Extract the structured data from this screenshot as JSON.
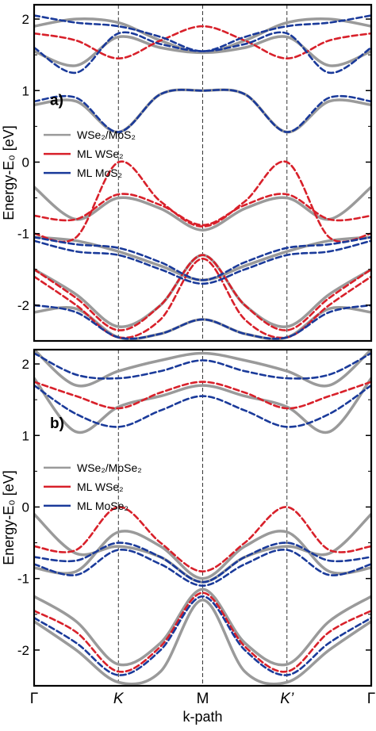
{
  "chart_data": [
    {
      "type": "line",
      "panel_label": "a)",
      "ylabel": "Energy-E₀ [eV]",
      "ylim": [
        -2.5,
        2.2
      ],
      "yticks": [
        -2,
        -1,
        0,
        1,
        2
      ],
      "ytick_labels": [
        "-2",
        "-1",
        "0",
        "1",
        "2"
      ],
      "xticks": [
        0,
        1,
        2,
        3,
        4
      ],
      "xtick_labels": [
        "Γ",
        "K",
        "M",
        "K’",
        "Γ"
      ],
      "vlines": [
        1,
        2,
        3
      ],
      "legend": {
        "position": "left",
        "entries": [
          {
            "name": "WSe₂/MoS₂",
            "color": "#9a9a9a",
            "style": "solid"
          },
          {
            "name": "ML WSe₂",
            "color": "#d8202a",
            "style": "solid"
          },
          {
            "name": "ML MoS₂",
            "color": "#1a3a9a",
            "style": "solid"
          }
        ]
      },
      "series": [
        {
          "name": "WSe₂/MoS₂",
          "color": "#9a9a9a",
          "dash": false,
          "width": 3.5,
          "bands": [
            {
              "x": [
                0,
                0.5,
                1,
                1.5,
                2,
                2.5,
                3,
                3.5,
                4
              ],
              "y": [
                0.8,
                0.85,
                0.42,
                0.95,
                1.0,
                0.95,
                0.42,
                0.85,
                0.8
              ]
            },
            {
              "x": [
                0,
                0.5,
                1,
                1.5,
                2,
                2.5,
                3,
                3.5,
                4
              ],
              "y": [
                1.55,
                1.35,
                1.75,
                1.6,
                1.53,
                1.6,
                1.75,
                1.35,
                1.55
              ]
            },
            {
              "x": [
                0,
                0.5,
                1,
                1.5,
                2,
                2.5,
                3,
                3.5,
                4
              ],
              "y": [
                1.9,
                2.0,
                1.95,
                1.7,
                1.53,
                1.7,
                1.95,
                2.0,
                1.9
              ]
            },
            {
              "x": [
                0,
                0.5,
                1,
                1.5,
                2,
                2.5,
                3,
                3.5,
                4
              ],
              "y": [
                -0.35,
                -0.8,
                -0.5,
                -0.65,
                -0.95,
                -0.65,
                -0.5,
                -0.8,
                -0.35
              ]
            },
            {
              "x": [
                0,
                0.5,
                1,
                1.5,
                2,
                2.5,
                3,
                3.5,
                4
              ],
              "y": [
                -1.05,
                -1.1,
                -1.25,
                -1.45,
                -1.65,
                -1.45,
                -1.25,
                -1.1,
                -1.05
              ]
            },
            {
              "x": [
                0,
                0.5,
                1,
                1.5,
                2,
                2.5,
                3,
                3.5,
                4
              ],
              "y": [
                -1.5,
                -1.85,
                -2.3,
                -2.0,
                -1.3,
                -2.0,
                -2.3,
                -1.85,
                -1.5
              ]
            },
            {
              "x": [
                0,
                0.5,
                1,
                1.5,
                2,
                2.5,
                3,
                3.5,
                4
              ],
              "y": [
                -2.1,
                -2.05,
                -2.45,
                -2.4,
                -2.2,
                -2.4,
                -2.45,
                -2.05,
                -2.1
              ]
            }
          ]
        },
        {
          "name": "ML WSe₂",
          "color": "#d8202a",
          "dash": true,
          "width": 2.6,
          "bands": [
            {
              "x": [
                0,
                0.5,
                1,
                1.5,
                2,
                2.5,
                3,
                3.5,
                4
              ],
              "y": [
                1.8,
                1.7,
                1.45,
                1.7,
                1.9,
                1.7,
                1.45,
                1.7,
                1.8
              ]
            },
            {
              "x": [
                0,
                0.5,
                1,
                1.5,
                2,
                2.5,
                3,
                3.5,
                4
              ],
              "y": [
                -0.75,
                -0.8,
                -0.45,
                -0.6,
                -0.88,
                -0.6,
                -0.45,
                -0.8,
                -0.75
              ]
            },
            {
              "x": [
                0,
                0.5,
                1,
                1.5,
                2,
                2.5,
                3,
                3.5,
                4
              ],
              "y": [
                -1.0,
                -1.05,
                0.0,
                -0.55,
                -0.9,
                -0.55,
                0.0,
                -1.05,
                -1.0
              ]
            },
            {
              "x": [
                0,
                0.5,
                1,
                1.5,
                2,
                2.5,
                3,
                3.5,
                4
              ],
              "y": [
                -1.5,
                -1.9,
                -2.35,
                -2.0,
                -1.3,
                -2.0,
                -2.35,
                -1.9,
                -1.5
              ]
            },
            {
              "x": [
                0,
                0.5,
                1,
                1.5,
                2,
                2.5,
                3,
                3.5,
                4
              ],
              "y": [
                -1.6,
                -2.0,
                -2.45,
                -2.2,
                -1.35,
                -2.2,
                -2.45,
                -2.0,
                -1.6
              ]
            }
          ]
        },
        {
          "name": "ML MoS₂",
          "color": "#1a3a9a",
          "dash": true,
          "width": 2.6,
          "bands": [
            {
              "x": [
                0,
                0.5,
                1,
                1.5,
                2,
                2.5,
                3,
                3.5,
                4
              ],
              "y": [
                0.85,
                0.9,
                0.42,
                0.95,
                1.0,
                0.95,
                0.42,
                0.9,
                0.85
              ]
            },
            {
              "x": [
                0,
                0.5,
                1,
                1.5,
                2,
                2.5,
                3,
                3.5,
                4
              ],
              "y": [
                1.6,
                1.25,
                1.8,
                1.65,
                1.55,
                1.65,
                1.8,
                1.25,
                1.6
              ]
            },
            {
              "x": [
                0,
                0.5,
                1,
                1.5,
                2,
                2.5,
                3,
                3.5,
                4
              ],
              "y": [
                2.05,
                1.95,
                1.9,
                1.75,
                1.55,
                1.75,
                1.9,
                1.95,
                2.05
              ]
            },
            {
              "x": [
                0,
                0.5,
                1,
                1.5,
                2,
                2.5,
                3,
                3.5,
                4
              ],
              "y": [
                -1.05,
                -1.15,
                -1.2,
                -1.4,
                -1.65,
                -1.4,
                -1.2,
                -1.15,
                -1.05
              ]
            },
            {
              "x": [
                0,
                0.5,
                1,
                1.5,
                2,
                2.5,
                3,
                3.5,
                4
              ],
              "y": [
                -1.1,
                -1.25,
                -1.3,
                -1.5,
                -1.7,
                -1.5,
                -1.3,
                -1.25,
                -1.1
              ]
            },
            {
              "x": [
                0,
                0.5,
                1,
                1.5,
                2,
                2.5,
                3,
                3.5,
                4
              ],
              "y": [
                -2.0,
                -2.1,
                -2.45,
                -2.4,
                -2.2,
                -2.4,
                -2.45,
                -2.1,
                -2.0
              ]
            }
          ]
        }
      ]
    },
    {
      "type": "line",
      "panel_label": "b)",
      "ylabel": "Energy-E₀ [eV]",
      "xlabel": "k-path",
      "ylim": [
        -2.5,
        2.2
      ],
      "yticks": [
        -2,
        -1,
        0,
        1,
        2
      ],
      "ytick_labels": [
        "-2",
        "-1",
        "0",
        "1",
        "2"
      ],
      "xticks": [
        0,
        1,
        2,
        3,
        4
      ],
      "xtick_labels": [
        "Γ",
        "K",
        "M",
        "K’",
        "Γ"
      ],
      "vlines": [
        1,
        2,
        3
      ],
      "legend": {
        "position": "left",
        "entries": [
          {
            "name": "WSe₂/MoSe₂",
            "color": "#9a9a9a",
            "style": "solid"
          },
          {
            "name": "ML WSe₂",
            "color": "#d8202a",
            "style": "solid"
          },
          {
            "name": "ML MoSe₂",
            "color": "#1a3a9a",
            "style": "solid"
          }
        ]
      },
      "series": [
        {
          "name": "WSe₂/MoSe₂",
          "color": "#9a9a9a",
          "dash": false,
          "width": 3.5,
          "bands": [
            {
              "x": [
                0,
                0.5,
                1,
                1.5,
                2,
                2.5,
                3,
                3.5,
                4
              ],
              "y": [
                1.8,
                1.05,
                1.4,
                1.55,
                1.7,
                1.55,
                1.4,
                1.05,
                1.8
              ]
            },
            {
              "x": [
                0,
                0.5,
                1,
                1.5,
                2,
                2.5,
                3,
                3.5,
                4
              ],
              "y": [
                2.2,
                1.7,
                1.9,
                2.05,
                2.15,
                2.05,
                1.9,
                1.7,
                2.2
              ]
            },
            {
              "x": [
                0,
                0.5,
                1,
                1.5,
                2,
                2.5,
                3,
                3.5,
                4
              ],
              "y": [
                -0.1,
                -0.65,
                -0.55,
                -0.7,
                -1.05,
                -0.7,
                -0.55,
                -0.65,
                -0.1
              ]
            },
            {
              "x": [
                0,
                0.5,
                1,
                1.5,
                2,
                2.5,
                3,
                3.5,
                4
              ],
              "y": [
                -0.85,
                -0.9,
                -0.35,
                -0.55,
                -1.0,
                -0.55,
                -0.35,
                -0.9,
                -0.85
              ]
            },
            {
              "x": [
                0,
                0.5,
                1,
                1.5,
                2,
                2.5,
                3,
                3.5,
                4
              ],
              "y": [
                -1.25,
                -1.6,
                -2.2,
                -1.9,
                -1.15,
                -1.9,
                -2.2,
                -1.6,
                -1.25
              ]
            },
            {
              "x": [
                0,
                0.5,
                1,
                1.5,
                2,
                2.5,
                3,
                3.5,
                4
              ],
              "y": [
                -1.6,
                -2.0,
                -2.45,
                -2.3,
                -1.3,
                -2.3,
                -2.45,
                -2.0,
                -1.6
              ]
            }
          ]
        },
        {
          "name": "ML WSe₂",
          "color": "#d8202a",
          "dash": true,
          "width": 2.6,
          "bands": [
            {
              "x": [
                0,
                0.5,
                1,
                1.5,
                2,
                2.5,
                3,
                3.5,
                4
              ],
              "y": [
                1.75,
                1.55,
                1.38,
                1.6,
                1.75,
                1.6,
                1.38,
                1.55,
                1.75
              ]
            },
            {
              "x": [
                0,
                0.5,
                1,
                1.5,
                2,
                2.5,
                3,
                3.5,
                4
              ],
              "y": [
                -0.55,
                -0.6,
                0.0,
                -0.5,
                -0.9,
                -0.5,
                0.0,
                -0.6,
                -0.55
              ]
            },
            {
              "x": [
                0,
                0.5,
                1,
                1.5,
                2,
                2.5,
                3,
                3.5,
                4
              ],
              "y": [
                -1.45,
                -1.75,
                -2.3,
                -1.95,
                -1.2,
                -1.95,
                -2.3,
                -1.75,
                -1.45
              ]
            }
          ]
        },
        {
          "name": "ML MoSe₂",
          "color": "#1a3a9a",
          "dash": true,
          "width": 2.6,
          "bands": [
            {
              "x": [
                0,
                0.5,
                1,
                1.5,
                2,
                2.5,
                3,
                3.5,
                4
              ],
              "y": [
                1.7,
                1.3,
                1.12,
                1.35,
                1.55,
                1.35,
                1.12,
                1.3,
                1.7
              ]
            },
            {
              "x": [
                0,
                0.5,
                1,
                1.5,
                2,
                2.5,
                3,
                3.5,
                4
              ],
              "y": [
                2.15,
                1.85,
                1.8,
                1.9,
                2.05,
                1.9,
                1.8,
                1.85,
                2.15
              ]
            },
            {
              "x": [
                0,
                0.5,
                1,
                1.5,
                2,
                2.5,
                3,
                3.5,
                4
              ],
              "y": [
                -0.7,
                -0.75,
                -0.5,
                -0.7,
                -1.05,
                -0.7,
                -0.5,
                -0.75,
                -0.7
              ]
            },
            {
              "x": [
                0,
                0.5,
                1,
                1.5,
                2,
                2.5,
                3,
                3.5,
                4
              ],
              "y": [
                -0.8,
                -0.95,
                -0.6,
                -0.8,
                -1.1,
                -0.8,
                -0.6,
                -0.95,
                -0.8
              ]
            },
            {
              "x": [
                0,
                0.5,
                1,
                1.5,
                2,
                2.5,
                3,
                3.5,
                4
              ],
              "y": [
                -1.55,
                -1.9,
                -2.35,
                -2.0,
                -1.25,
                -2.0,
                -2.35,
                -1.9,
                -1.55
              ]
            }
          ]
        }
      ]
    }
  ]
}
